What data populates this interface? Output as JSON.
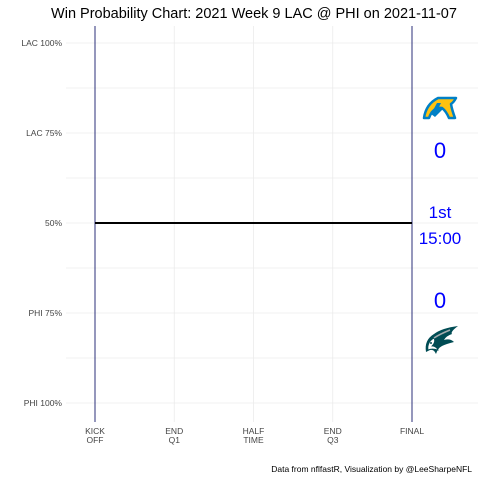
{
  "chart_data": {
    "type": "line",
    "title": "Win Probability Chart: 2021 Week 9 LAC @ PHI on 2021-11-07",
    "xlabel": "",
    "ylabel": "",
    "x_ticks": [
      {
        "value": 0,
        "label": [
          "KICK",
          "OFF"
        ]
      },
      {
        "value": 15,
        "label": [
          "END",
          "Q1"
        ]
      },
      {
        "value": 30,
        "label": [
          "HALF",
          "TIME"
        ]
      },
      {
        "value": 45,
        "label": [
          "END",
          "Q3"
        ]
      },
      {
        "value": 60,
        "label": [
          "FINAL"
        ]
      }
    ],
    "y_ticks": [
      {
        "value": 1.0,
        "label": "LAC 100%"
      },
      {
        "value": 0.75,
        "label": "LAC 75%"
      },
      {
        "value": 0.5,
        "label": "50%"
      },
      {
        "value": 0.25,
        "label": "PHI 75%"
      },
      {
        "value": 0.0,
        "label": "PHI 100%"
      }
    ],
    "xlim": [
      0,
      60
    ],
    "ylim": [
      0,
      1
    ],
    "grid": true,
    "series": [
      {
        "x": [
          0,
          60
        ],
        "y": [
          0.5,
          0.5
        ],
        "color": "#000000"
      }
    ],
    "away_team": {
      "abbr": "LAC",
      "score": "0",
      "logo": "chargers-logo"
    },
    "home_team": {
      "abbr": "PHI",
      "score": "0",
      "logo": "eagles-logo"
    },
    "game_clock": {
      "quarter": "1st",
      "time": "15:00"
    },
    "caption": "Data from nflfastR, Visualization by @LeeSharpeNFL",
    "colors": {
      "score_text": "#0000ff",
      "boundary_lines": "#2b2f7a",
      "wp_line": "#000000",
      "grid": "#ebebeb",
      "chargers_blue": "#0080c6",
      "chargers_gold": "#ffc20e",
      "eagles_green": "#004c54"
    }
  }
}
